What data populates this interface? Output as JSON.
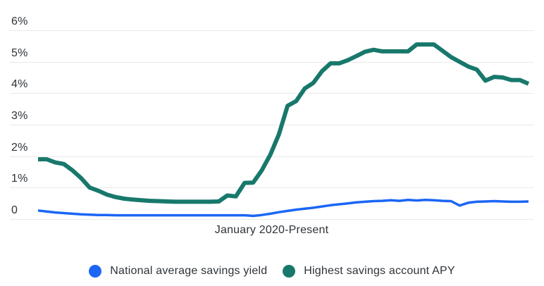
{
  "chart_data": {
    "type": "line",
    "title": "",
    "x_axis_label": "January 2020-Present",
    "x_description": "monthly points from January 2020 to present (no individual x tick labels shown)",
    "ylabel": "",
    "ylim": [
      0,
      6
    ],
    "y_ticks": [
      "6%",
      "5%",
      "4%",
      "3%",
      "2%",
      "1%",
      "0"
    ],
    "grid": "horizontal gridlines on, light gray",
    "legend_position": "bottom-center",
    "series": [
      {
        "name": "National average savings yield",
        "color": "#1b66f5",
        "values": [
          0.27,
          0.24,
          0.21,
          0.19,
          0.17,
          0.15,
          0.14,
          0.13,
          0.13,
          0.12,
          0.12,
          0.12,
          0.12,
          0.12,
          0.12,
          0.12,
          0.12,
          0.12,
          0.12,
          0.12,
          0.12,
          0.12,
          0.12,
          0.12,
          0.12,
          0.1,
          0.13,
          0.17,
          0.22,
          0.26,
          0.3,
          0.33,
          0.36,
          0.4,
          0.44,
          0.47,
          0.5,
          0.53,
          0.55,
          0.57,
          0.58,
          0.6,
          0.58,
          0.61,
          0.59,
          0.61,
          0.6,
          0.58,
          0.57,
          0.43,
          0.52,
          0.55,
          0.56,
          0.57,
          0.56,
          0.55,
          0.55,
          0.56
        ]
      },
      {
        "name": "Highest savings account APY",
        "color": "#17786b",
        "values": [
          1.9,
          1.9,
          1.8,
          1.75,
          1.55,
          1.3,
          1.0,
          0.9,
          0.78,
          0.7,
          0.65,
          0.62,
          0.6,
          0.58,
          0.57,
          0.56,
          0.55,
          0.55,
          0.55,
          0.55,
          0.55,
          0.56,
          0.75,
          0.72,
          1.15,
          1.16,
          1.55,
          2.05,
          2.7,
          3.6,
          3.75,
          4.15,
          4.33,
          4.7,
          4.95,
          4.95,
          5.05,
          5.18,
          5.32,
          5.38,
          5.33,
          5.33,
          5.33,
          5.33,
          5.55,
          5.55,
          5.55,
          5.35,
          5.15,
          5.0,
          4.85,
          4.75,
          4.4,
          4.52,
          4.5,
          4.42,
          4.42,
          4.3
        ]
      }
    ]
  },
  "legend": {
    "items": [
      {
        "label": "National average savings yield",
        "color": "#1b66f5"
      },
      {
        "label": "Highest savings account APY",
        "color": "#17786b"
      }
    ]
  },
  "colors": {
    "background": "#ffffff",
    "gridline": "#e9e9e9",
    "text": "#2e3338"
  }
}
